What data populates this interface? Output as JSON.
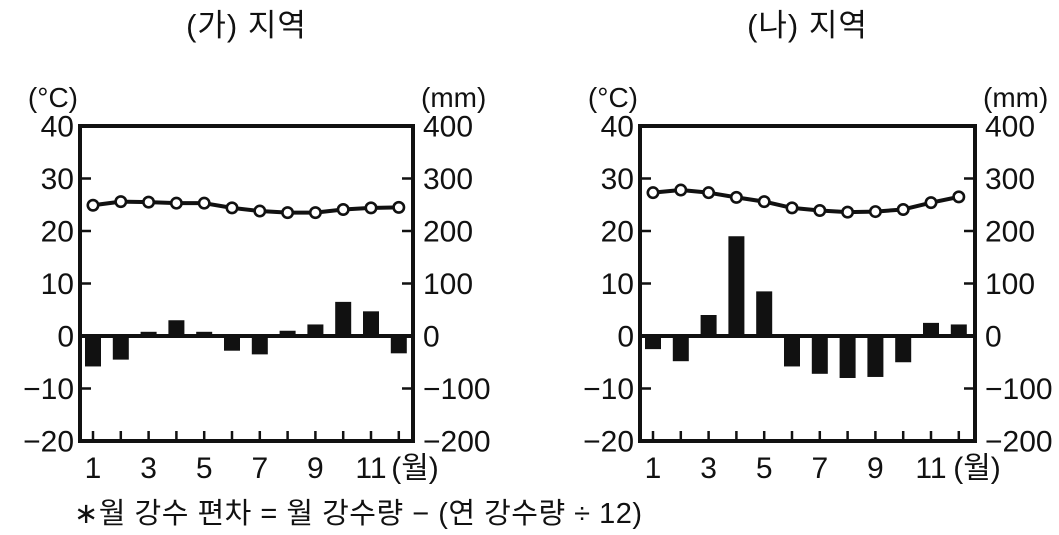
{
  "figure": {
    "footnote": "∗월 강수 편차 = 월 강수량 − (연 강수량 ÷ 12)",
    "ink_color": "#111111",
    "background_color": "#ffffff"
  },
  "chart_data": [
    {
      "id": "ga",
      "type": "line+bar",
      "title": "(가) 지역",
      "x_axis": {
        "unit_label": "(월)",
        "labeled_months": [
          1,
          3,
          5,
          7,
          9,
          11
        ],
        "month_count": 12
      },
      "left_axis": {
        "unit": "(°C)",
        "min": -20,
        "max": 40,
        "tick_labels": [
          "40",
          "30",
          "20",
          "10",
          "0",
          "−10",
          "−20"
        ]
      },
      "right_axis": {
        "unit": "(mm)",
        "min": -200,
        "max": 400,
        "tick_labels": [
          "400",
          "300",
          "200",
          "100",
          "0",
          "−100",
          "−200"
        ]
      },
      "series": [
        {
          "role": "temperature",
          "type": "line",
          "axis": "left",
          "values": [
            24.9,
            25.6,
            25.5,
            25.3,
            25.3,
            24.4,
            23.8,
            23.5,
            23.5,
            24.1,
            24.4,
            24.5
          ]
        },
        {
          "role": "precipitation-deviation",
          "type": "bar",
          "axis": "right",
          "values": [
            -58,
            -45,
            8,
            30,
            8,
            -28,
            -35,
            10,
            22,
            65,
            47,
            -33
          ]
        }
      ]
    },
    {
      "id": "na",
      "type": "line+bar",
      "title": "(나) 지역",
      "x_axis": {
        "unit_label": "(월)",
        "labeled_months": [
          1,
          3,
          5,
          7,
          9,
          11
        ],
        "month_count": 12
      },
      "left_axis": {
        "unit": "(°C)",
        "min": -20,
        "max": 40,
        "tick_labels": [
          "40",
          "30",
          "20",
          "10",
          "0",
          "−10",
          "−20"
        ]
      },
      "right_axis": {
        "unit": "(mm)",
        "min": -200,
        "max": 400,
        "tick_labels": [
          "400",
          "300",
          "200",
          "100",
          "0",
          "−100",
          "−200"
        ]
      },
      "series": [
        {
          "role": "temperature",
          "type": "line",
          "axis": "left",
          "values": [
            27.3,
            27.8,
            27.3,
            26.4,
            25.6,
            24.4,
            23.9,
            23.6,
            23.7,
            24.1,
            25.4,
            26.5
          ]
        },
        {
          "role": "precipitation-deviation",
          "type": "bar",
          "axis": "right",
          "values": [
            -25,
            -48,
            40,
            190,
            85,
            -58,
            -72,
            -80,
            -78,
            -50,
            25,
            22
          ]
        }
      ]
    }
  ]
}
